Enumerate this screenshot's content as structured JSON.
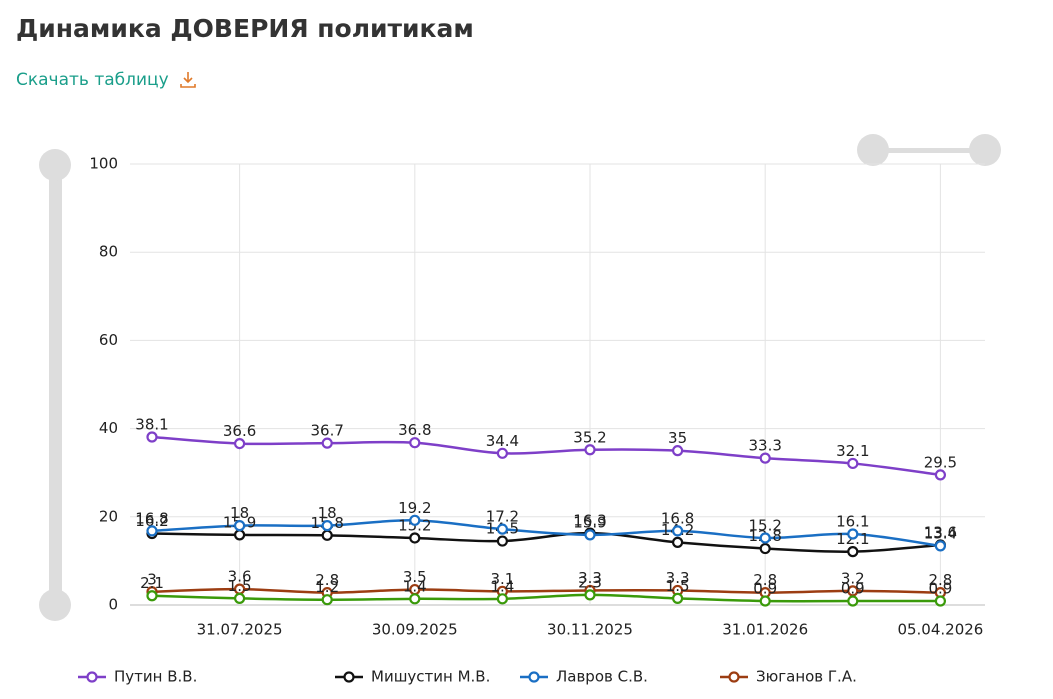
{
  "header": {
    "title": "Динамика ДОВЕРИЯ политикам",
    "download": "Скачать таблицу"
  },
  "chart_data": {
    "type": "line",
    "categories": [
      null,
      "31.07.2025",
      null,
      "30.09.2025",
      null,
      "30.11.2025",
      null,
      "31.01.2026",
      null,
      "05.04.2026"
    ],
    "series": [
      {
        "name": "Путин В.В.",
        "color": "#7e3fc8",
        "values": [
          38.1,
          36.6,
          36.7,
          36.8,
          34.4,
          35.2,
          35,
          33.3,
          32.1,
          29.5
        ]
      },
      {
        "name": "Мишустин М.В.",
        "color": "#111111",
        "values": [
          16.2,
          15.9,
          15.8,
          15.2,
          14.5,
          16.3,
          14.2,
          12.8,
          12.1,
          13.6
        ]
      },
      {
        "name": "Лавров С.В.",
        "color": "#1a6fc4",
        "values": [
          16.8,
          18,
          18,
          19.2,
          17.2,
          15.9,
          16.8,
          15.2,
          16.1,
          13.4
        ]
      },
      {
        "name": "Зюганов Г.А.",
        "color": "#9c3d12",
        "values": [
          3,
          3.6,
          2.8,
          3.5,
          3.1,
          3.3,
          3.3,
          2.8,
          3.2,
          2.8
        ]
      },
      {
        "color": "#3a9a0a",
        "values": [
          2.1,
          1.5,
          1.2,
          1.4,
          1.4,
          2.3,
          1.5,
          0.9,
          0.9,
          0.9
        ]
      }
    ],
    "ylim": [
      0,
      100
    ],
    "yticks": [
      0,
      20,
      40,
      60,
      80,
      100
    ],
    "grid": true
  }
}
